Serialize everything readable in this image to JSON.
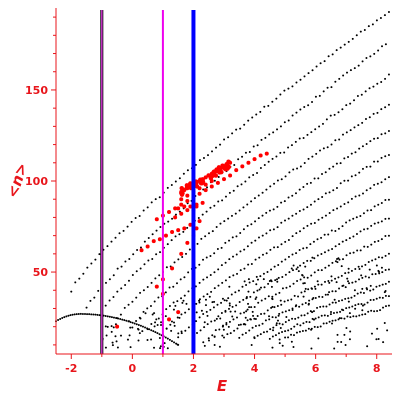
{
  "chart_data": {
    "type": "scatter",
    "xlabel": "E",
    "ylabel": "<n>",
    "xlim": [
      -2.5,
      8.5
    ],
    "ylim": [
      5,
      195
    ],
    "xticks": [
      "-2",
      "0",
      "2",
      "4",
      "6",
      "8"
    ],
    "yticks": [
      "50",
      "100",
      "150"
    ],
    "grid": false,
    "axis_color": "#e8151b",
    "vertical_lines": [
      {
        "x": -1.0,
        "color": "#000000"
      },
      {
        "x": -1.0,
        "color": "#cc33cc"
      },
      {
        "x": 1.0,
        "color": "#ee00ee"
      },
      {
        "x": 2.0,
        "color": "#0000ff"
      }
    ],
    "series": [
      {
        "color": "#000000",
        "bands": [
          {
            "x0": -2.0,
            "x1": 8.4,
            "y0": 40,
            "y1": 193,
            "n": 80
          },
          {
            "x0": -1.5,
            "x1": 8.3,
            "y0": 30,
            "y1": 175,
            "n": 78
          },
          {
            "x0": -1.0,
            "x1": 8.4,
            "y0": 28,
            "y1": 158,
            "n": 75
          },
          {
            "x0": -0.5,
            "x1": 8.4,
            "y0": 24,
            "y1": 142,
            "n": 72
          },
          {
            "x0": 0.0,
            "x1": 8.4,
            "y0": 20,
            "y1": 128,
            "n": 70
          },
          {
            "x0": 0.5,
            "x1": 8.4,
            "y0": 18,
            "y1": 115,
            "n": 66
          },
          {
            "x0": 1.0,
            "x1": 8.4,
            "y0": 16,
            "y1": 102,
            "n": 62
          },
          {
            "x0": 1.5,
            "x1": 8.4,
            "y0": 14,
            "y1": 90,
            "n": 60
          },
          {
            "x0": 2.0,
            "x1": 8.4,
            "y0": 14,
            "y1": 80,
            "n": 56
          },
          {
            "x0": 2.5,
            "x1": 8.4,
            "y0": 14,
            "y1": 70,
            "n": 52
          },
          {
            "x0": 3.0,
            "x1": 8.4,
            "y0": 14,
            "y1": 60,
            "n": 50
          },
          {
            "x0": 3.5,
            "x1": 8.4,
            "y0": 14,
            "y1": 52,
            "n": 46
          },
          {
            "x0": 4.0,
            "x1": 8.4,
            "y0": 14,
            "y1": 44,
            "n": 44
          },
          {
            "x0": 4.5,
            "x1": 8.4,
            "y0": 14,
            "y1": 37,
            "n": 40
          },
          {
            "x0": 5.0,
            "x1": 8.4,
            "y0": 14,
            "y1": 31,
            "n": 36
          }
        ],
        "arc": {
          "x0": -2.5,
          "x1": 1.5,
          "ypeak": 27,
          "xpeak": -1.7,
          "yend": 10,
          "n": 60
        },
        "cloud": {
          "x0": -1.0,
          "x1": 8.4,
          "ymin": 8,
          "ymax": 60,
          "n": 220
        }
      },
      {
        "color": "#ff0000",
        "points": [
          [
            -0.5,
            20
          ],
          [
            0.8,
            42
          ],
          [
            1.0,
            38
          ],
          [
            1.2,
            24
          ],
          [
            1.5,
            28
          ],
          [
            0.3,
            62
          ],
          [
            0.5,
            64
          ],
          [
            0.7,
            67
          ],
          [
            0.9,
            68
          ],
          [
            1.1,
            70
          ],
          [
            1.3,
            72
          ],
          [
            1.5,
            73
          ],
          [
            1.7,
            74
          ],
          [
            1.9,
            76
          ],
          [
            1.0,
            46
          ],
          [
            1.3,
            52
          ],
          [
            1.6,
            60
          ],
          [
            1.8,
            66
          ],
          [
            2.0,
            70
          ],
          [
            2.1,
            74
          ],
          [
            2.2,
            78
          ],
          [
            0.8,
            79
          ],
          [
            1.0,
            81
          ],
          [
            1.2,
            83
          ],
          [
            1.4,
            85
          ],
          [
            1.6,
            87
          ],
          [
            1.8,
            89
          ],
          [
            2.0,
            91
          ],
          [
            2.2,
            93
          ],
          [
            2.4,
            95
          ],
          [
            2.6,
            97
          ],
          [
            2.8,
            99
          ],
          [
            3.0,
            101
          ],
          [
            3.2,
            103
          ],
          [
            3.4,
            106
          ],
          [
            3.6,
            108
          ],
          [
            3.8,
            110
          ],
          [
            4.0,
            112
          ],
          [
            4.2,
            114
          ],
          [
            4.4,
            115
          ],
          [
            1.6,
            94
          ],
          [
            1.7,
            95
          ],
          [
            1.8,
            96
          ],
          [
            1.9,
            97
          ],
          [
            2.0,
            98
          ],
          [
            2.1,
            99
          ],
          [
            2.2,
            100
          ],
          [
            2.3,
            101
          ],
          [
            2.4,
            102
          ],
          [
            2.5,
            103
          ],
          [
            2.6,
            104
          ],
          [
            2.7,
            105
          ],
          [
            2.8,
            106
          ],
          [
            2.9,
            107
          ],
          [
            3.0,
            108
          ],
          [
            3.1,
            109
          ],
          [
            3.2,
            110
          ],
          [
            1.6,
            90
          ],
          [
            1.8,
            92
          ],
          [
            2.0,
            94
          ],
          [
            2.2,
            96
          ],
          [
            2.4,
            98
          ],
          [
            2.6,
            100
          ],
          [
            1.5,
            85
          ],
          [
            1.7,
            86
          ],
          [
            1.9,
            86
          ],
          [
            2.1,
            87
          ],
          [
            2.3,
            88
          ],
          [
            1.4,
            80
          ],
          [
            1.6,
            82
          ],
          [
            1.8,
            84
          ],
          [
            2.0,
            84
          ],
          [
            2.1,
            86
          ]
        ]
      }
    ]
  }
}
